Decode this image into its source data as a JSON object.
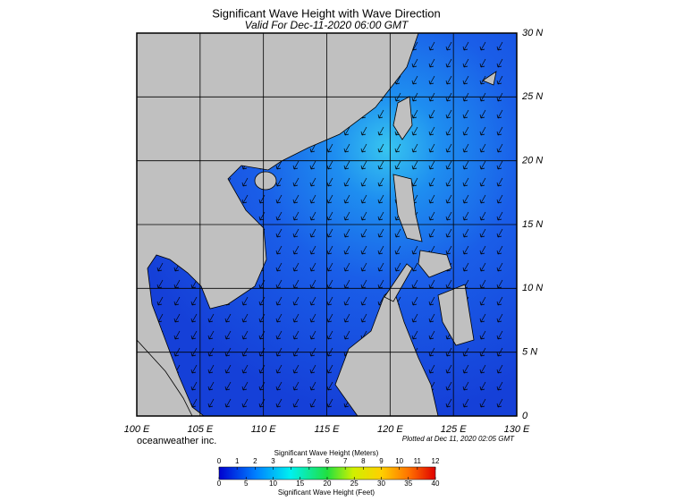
{
  "header": {
    "title": "Significant Wave Height with Wave Direction",
    "subtitle": "Valid For Dec-11-2020 06:00 GMT"
  },
  "map": {
    "lon_labels": [
      "100 E",
      "105 E",
      "110 E",
      "115 E",
      "120 E",
      "125 E",
      "130 E"
    ],
    "lat_labels": [
      "0",
      "5 N",
      "10 N",
      "15 N",
      "20 N",
      "25 N",
      "30 N"
    ],
    "credit": "oceanweather inc.",
    "plotted": "Plotted at Dec 11, 2020 02:05 GMT"
  },
  "colorbar": {
    "meters_title": "Significant Wave Height (Meters)",
    "meters_ticks": [
      0,
      1,
      2,
      3,
      4,
      5,
      6,
      7,
      8,
      9,
      10,
      11,
      12
    ],
    "feet_ticks": [
      0,
      5,
      10,
      15,
      20,
      25,
      30,
      35,
      40
    ],
    "feet_title": "Significant Wave Height (Feet)"
  }
}
